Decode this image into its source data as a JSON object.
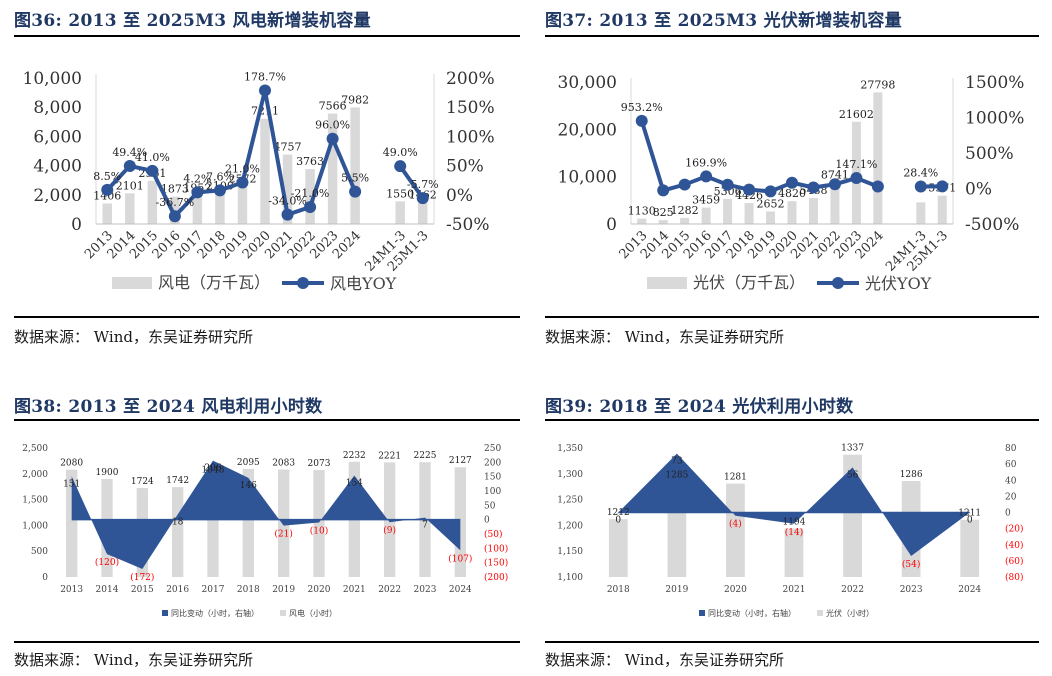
{
  "panels": [
    {
      "title": "图36:  2013 至 2025M3 风电新增装机容量",
      "source": "数据来源：  Wind，东吴证券研究所",
      "chart_data": {
        "type": "bar+line",
        "categories": [
          "2013",
          "2014",
          "2015",
          "2016",
          "2017",
          "2018",
          "2019",
          "2020",
          "2021",
          "2022",
          "2023",
          "2024",
          "",
          "24M1-3",
          "25M1-3"
        ],
        "series": [
          {
            "name": "风电（万千瓦）",
            "type": "bar",
            "axis": "left",
            "values": [
              1406,
              2101,
              2961,
              1873,
              1952,
              2100,
              2572,
              7211,
              4757,
              3763,
              7566,
              7982,
              null,
              1550,
              1462
            ],
            "labels": [
              "1406",
              "2101",
              "2961",
              "1873",
              "1952",
              "2100",
              "2572",
              "7211",
              "4757",
              "3763",
              "7566",
              "7982",
              "",
              "1550",
              "1462"
            ]
          },
          {
            "name": "风电YOY",
            "type": "line",
            "axis": "right",
            "values": [
              8.5,
              49.4,
              41.0,
              -36.7,
              4.2,
              7.6,
              21.0,
              178.7,
              -34.0,
              -21.0,
              96.0,
              5.5,
              null,
              49.0,
              -5.7
            ],
            "labels": [
              "8.5%",
              "49.4%",
              "41.0%",
              "-36.7%",
              "4.2%",
              "7.6%",
              "21.0%",
              "178.7%",
              "-34.0%",
              "-21.0%",
              "96.0%",
              "5.5%",
              "",
              "49.0%",
              "-5.7%"
            ]
          }
        ],
        "yleft": {
          "min": 0,
          "max": 10000,
          "ticks": [
            "0",
            "2,000",
            "4,000",
            "6,000",
            "8,000",
            "10,000"
          ]
        },
        "yright": {
          "min": -50,
          "max": 200,
          "ticks": [
            "-50%",
            "0%",
            "50%",
            "100%",
            "150%",
            "200%"
          ]
        },
        "legend": [
          "风电（万千瓦）",
          "风电YOY"
        ],
        "colors": {
          "bar": "#d9d9d9",
          "line": "#2f5597"
        }
      }
    },
    {
      "title": "图37:  2013 至 2025M3 光伏新增装机容量",
      "source": "数据来源：  Wind，东吴证券研究所",
      "chart_data": {
        "type": "bar+line",
        "categories": [
          "2013",
          "2014",
          "2015",
          "2016",
          "2017",
          "2018",
          "2019",
          "2020",
          "2021",
          "2022",
          "2023",
          "2024",
          "",
          "24M1-3",
          "25M1-3"
        ],
        "series": [
          {
            "name": "光伏（万千瓦）",
            "type": "bar",
            "axis": "left",
            "values": [
              1130,
              825,
              1282,
              3459,
              5306,
              4426,
              2652,
              4820,
              5488,
              8741,
              21602,
              27798,
              null,
              4574,
              5971
            ],
            "labels": [
              "1130",
              "825",
              "1282",
              "3459",
              "5306",
              "4426",
              "2652",
              "4820",
              "5488",
              "8741",
              "21602",
              "27798",
              "",
              "",
              "5971"
            ]
          },
          {
            "name": "光伏YOY",
            "type": "line",
            "axis": "right",
            "values": [
              953.2,
              -27.0,
              55.4,
              169.9,
              53.4,
              -16.6,
              -40.1,
              81.7,
              13.9,
              59.3,
              147.1,
              28.7,
              null,
              28.4,
              30.5
            ],
            "labels": [
              "953.2%",
              "",
              "",
              "169.9%",
              "",
              "",
              "",
              "",
              "",
              "",
              "147.1%",
              "",
              "",
              "28.4%",
              ""
            ]
          }
        ],
        "yleft": {
          "min": 0,
          "max": 30000,
          "ticks": [
            "0",
            "10,000",
            "20,000",
            "30,000"
          ]
        },
        "yright": {
          "min": -500,
          "max": 1500,
          "ticks": [
            "-500%",
            "0%",
            "500%",
            "1000%",
            "1500%"
          ]
        },
        "legend": [
          "光伏（万千瓦）",
          "光伏YOY"
        ],
        "colors": {
          "bar": "#d9d9d9",
          "line": "#2f5597"
        }
      }
    },
    {
      "title": "图38:  2013 至 2024 风电利用小时数",
      "source": "数据来源：  Wind，东吴证券研究所",
      "chart_data": {
        "type": "bar+area",
        "categories": [
          "2013",
          "2014",
          "2015",
          "2016",
          "2017",
          "2018",
          "2019",
          "2020",
          "2021",
          "2022",
          "2023",
          "2024"
        ],
        "series": [
          {
            "name": "风电（小时）",
            "type": "bar",
            "axis": "left",
            "values": [
              2080,
              1900,
              1724,
              1742,
              1948,
              2095,
              2083,
              2073,
              2232,
              2221,
              2225,
              2127
            ],
            "labels": [
              "2080",
              "1900",
              "1724",
              "1742",
              "1948",
              "2095",
              "2083",
              "2073",
              "2232",
              "2221",
              "2225",
              "2127"
            ]
          },
          {
            "name": "同比变动（小时，右轴）",
            "type": "area",
            "axis": "right",
            "values": [
              151,
              -120,
              -172,
              18,
              206,
              146,
              -21,
              -10,
              154,
              -9,
              7,
              -107
            ],
            "labels": [
              "151",
              "(120)",
              "(172)",
              "18",
              "206",
              "146",
              "(21)",
              "(10)",
              "154",
              "(9)",
              "7",
              "(107)"
            ]
          }
        ],
        "yleft": {
          "min": 0,
          "max": 2500,
          "ticks": [
            "0",
            "500",
            "1,000",
            "1,500",
            "2,000",
            "2,500"
          ]
        },
        "yright": {
          "min": -200,
          "max": 250,
          "ticks": [
            "(200)",
            "(150)",
            "(100)",
            "(50)",
            "0",
            "50",
            "100",
            "150",
            "200",
            "250"
          ]
        },
        "legend": [
          "同比变动（小时，右轴）",
          "风电（小时）"
        ],
        "colors": {
          "bar": "#d9d9d9",
          "area": "#2f5597",
          "negative_label": "#ff0000"
        }
      }
    },
    {
      "title": "图39:  2018 至 2024 光伏利用小时数",
      "source": "数据来源：  Wind，东吴证券研究所",
      "chart_data": {
        "type": "bar+area",
        "categories": [
          "2018",
          "2019",
          "2020",
          "2021",
          "2022",
          "2023",
          "2024"
        ],
        "series": [
          {
            "name": "光伏（小时）",
            "type": "bar",
            "axis": "left",
            "values": [
              1212,
              1285,
              1281,
              1194,
              1337,
              1286,
              1211
            ],
            "labels": [
              "1212",
              "1285",
              "1281",
              "1194",
              "1337",
              "1286",
              "1211"
            ]
          },
          {
            "name": "同比变动（小时，右轴）",
            "type": "area",
            "axis": "right",
            "values": [
              0,
              73,
              -4,
              -14,
              56,
              -54,
              0
            ],
            "labels": [
              "0",
              "73",
              "(4)",
              "(14)",
              "56",
              "(54)",
              "0"
            ]
          }
        ],
        "yleft": {
          "min": 1100,
          "max": 1350,
          "ticks": [
            "1,100",
            "1,150",
            "1,200",
            "1,250",
            "1,300",
            "1,350"
          ]
        },
        "yright": {
          "min": -80,
          "max": 80,
          "ticks": [
            "(80)",
            "(60)",
            "(40)",
            "(20)",
            "0",
            "20",
            "40",
            "60",
            "80"
          ]
        },
        "legend": [
          "同比变动（小时，右轴）",
          "光伏（小时）"
        ],
        "colors": {
          "bar": "#d9d9d9",
          "area": "#2f5597",
          "negative_label": "#ff0000"
        }
      }
    }
  ]
}
